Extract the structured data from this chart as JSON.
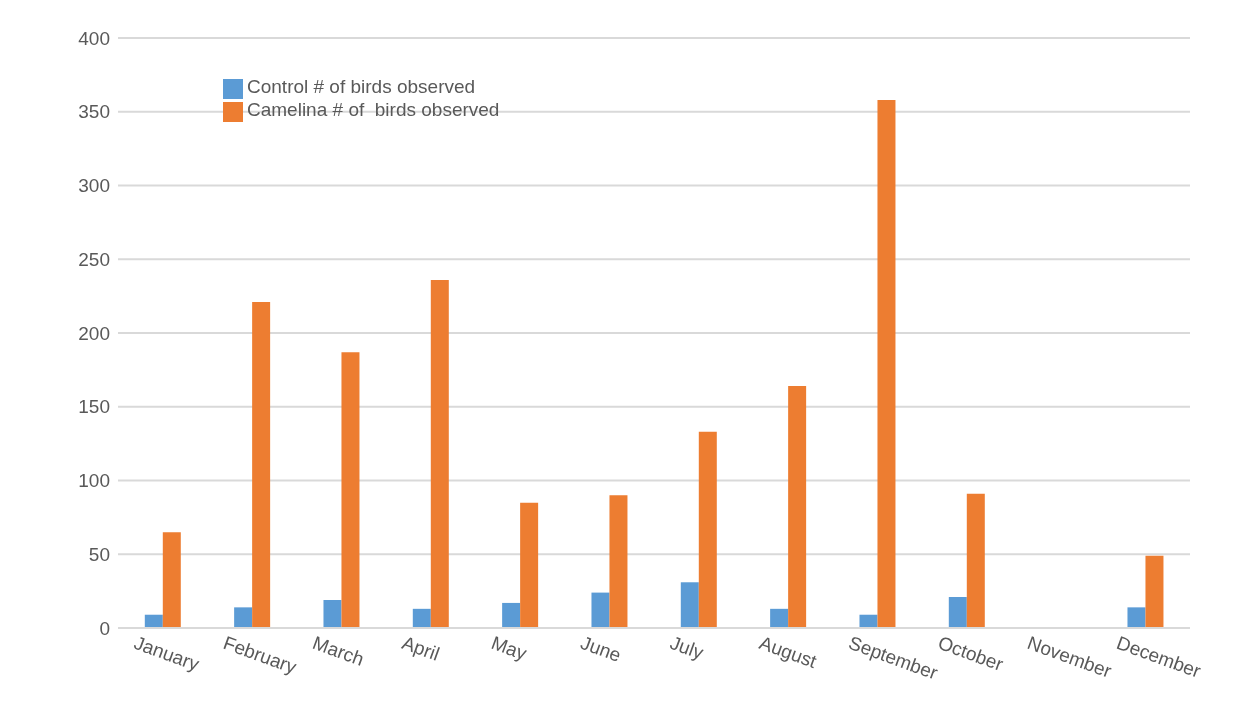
{
  "chart_data": {
    "type": "bar",
    "categories": [
      "January",
      "February",
      "March",
      "April",
      "May",
      "June",
      "July",
      "August",
      "September",
      "October",
      "November",
      "December"
    ],
    "series": [
      {
        "name": "Control # of birds observed",
        "color": "#5b9bd5",
        "values": [
          9,
          14,
          19,
          13,
          17,
          24,
          31,
          13,
          9,
          21,
          0,
          14
        ]
      },
      {
        "name": "Camelina # of  birds observed",
        "color": "#ed7d31",
        "values": [
          65,
          221,
          187,
          236,
          85,
          90,
          133,
          164,
          358,
          91,
          0,
          49
        ]
      }
    ],
    "ylim": [
      0,
      400
    ],
    "yticks": [
      0,
      50,
      100,
      150,
      200,
      250,
      300,
      350,
      400
    ],
    "grid": "y",
    "legend": "top left"
  }
}
